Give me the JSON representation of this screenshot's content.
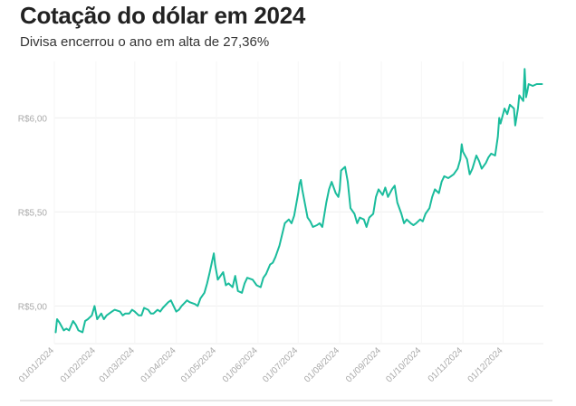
{
  "chart_data": {
    "type": "line",
    "title": "Cotação do dólar em 2024",
    "subtitle": "Divisa encerrou o ano em alta de 27,36%",
    "xlabel": "",
    "ylabel": "",
    "xlim": [
      "2024-01-01",
      "2024-12-31"
    ],
    "ylim": [
      4.8,
      6.3
    ],
    "y_ticks": [
      {
        "value": 5.0,
        "label": "R$5,00"
      },
      {
        "value": 5.5,
        "label": "R$5,50"
      },
      {
        "value": 6.0,
        "label": "R$6,00"
      }
    ],
    "x_ticks": [
      {
        "date": "2024-01-01",
        "label": "01/01/2024"
      },
      {
        "date": "2024-02-01",
        "label": "01/02/2024"
      },
      {
        "date": "2024-03-01",
        "label": "01/03/2024"
      },
      {
        "date": "2024-04-01",
        "label": "01/04/2024"
      },
      {
        "date": "2024-05-01",
        "label": "01/05/2024"
      },
      {
        "date": "2024-06-01",
        "label": "01/06/2024"
      },
      {
        "date": "2024-07-01",
        "label": "01/07/2024"
      },
      {
        "date": "2024-08-01",
        "label": "01/08/2024"
      },
      {
        "date": "2024-09-01",
        "label": "01/09/2024"
      },
      {
        "date": "2024-10-01",
        "label": "01/10/2024"
      },
      {
        "date": "2024-11-01",
        "label": "01/11/2024"
      },
      {
        "date": "2024-12-01",
        "label": "01/12/2024"
      }
    ],
    "grid": true,
    "line_color": "#1ABC9C",
    "series": [
      {
        "points": [
          [
            "2024-01-02",
            4.86
          ],
          [
            "2024-01-03",
            4.93
          ],
          [
            "2024-01-05",
            4.91
          ],
          [
            "2024-01-08",
            4.87
          ],
          [
            "2024-01-10",
            4.88
          ],
          [
            "2024-01-12",
            4.87
          ],
          [
            "2024-01-15",
            4.92
          ],
          [
            "2024-01-17",
            4.9
          ],
          [
            "2024-01-19",
            4.87
          ],
          [
            "2024-01-22",
            4.86
          ],
          [
            "2024-01-24",
            4.92
          ],
          [
            "2024-01-26",
            4.93
          ],
          [
            "2024-01-29",
            4.95
          ],
          [
            "2024-01-31",
            5.0
          ],
          [
            "2024-02-02",
            4.93
          ],
          [
            "2024-02-05",
            4.96
          ],
          [
            "2024-02-07",
            4.93
          ],
          [
            "2024-02-09",
            4.95
          ],
          [
            "2024-02-13",
            4.97
          ],
          [
            "2024-02-15",
            4.98
          ],
          [
            "2024-02-19",
            4.97
          ],
          [
            "2024-02-21",
            4.95
          ],
          [
            "2024-02-23",
            4.96
          ],
          [
            "2024-02-26",
            4.96
          ],
          [
            "2024-02-28",
            4.98
          ],
          [
            "2024-03-01",
            4.97
          ],
          [
            "2024-03-04",
            4.95
          ],
          [
            "2024-03-06",
            4.95
          ],
          [
            "2024-03-08",
            4.99
          ],
          [
            "2024-03-11",
            4.98
          ],
          [
            "2024-03-13",
            4.96
          ],
          [
            "2024-03-15",
            4.96
          ],
          [
            "2024-03-18",
            4.98
          ],
          [
            "2024-03-20",
            4.97
          ],
          [
            "2024-03-22",
            4.99
          ],
          [
            "2024-03-26",
            5.02
          ],
          [
            "2024-03-28",
            5.03
          ],
          [
            "2024-04-01",
            4.97
          ],
          [
            "2024-04-03",
            4.98
          ],
          [
            "2024-04-05",
            5.0
          ],
          [
            "2024-04-09",
            5.03
          ],
          [
            "2024-04-11",
            5.02
          ],
          [
            "2024-04-15",
            5.01
          ],
          [
            "2024-04-17",
            5.0
          ],
          [
            "2024-04-19",
            5.04
          ],
          [
            "2024-04-22",
            5.07
          ],
          [
            "2024-04-24",
            5.12
          ],
          [
            "2024-04-26",
            5.18
          ],
          [
            "2024-04-29",
            5.28
          ],
          [
            "2024-04-30",
            5.22
          ],
          [
            "2024-05-02",
            5.14
          ],
          [
            "2024-05-06",
            5.18
          ],
          [
            "2024-05-08",
            5.11
          ],
          [
            "2024-05-10",
            5.12
          ],
          [
            "2024-05-13",
            5.1
          ],
          [
            "2024-05-15",
            5.16
          ],
          [
            "2024-05-17",
            5.08
          ],
          [
            "2024-05-20",
            5.07
          ],
          [
            "2024-05-22",
            5.12
          ],
          [
            "2024-05-24",
            5.15
          ],
          [
            "2024-05-28",
            5.14
          ],
          [
            "2024-05-31",
            5.11
          ],
          [
            "2024-06-03",
            5.1
          ],
          [
            "2024-06-05",
            5.15
          ],
          [
            "2024-06-07",
            5.17
          ],
          [
            "2024-06-10",
            5.22
          ],
          [
            "2024-06-12",
            5.23
          ],
          [
            "2024-06-14",
            5.26
          ],
          [
            "2024-06-17",
            5.32
          ],
          [
            "2024-06-19",
            5.38
          ],
          [
            "2024-06-21",
            5.44
          ],
          [
            "2024-06-24",
            5.46
          ],
          [
            "2024-06-26",
            5.44
          ],
          [
            "2024-06-28",
            5.48
          ],
          [
            "2024-07-01",
            5.6
          ],
          [
            "2024-07-02",
            5.65
          ],
          [
            "2024-07-03",
            5.67
          ],
          [
            "2024-07-04",
            5.62
          ],
          [
            "2024-07-08",
            5.47
          ],
          [
            "2024-07-10",
            5.45
          ],
          [
            "2024-07-12",
            5.42
          ],
          [
            "2024-07-15",
            5.43
          ],
          [
            "2024-07-17",
            5.44
          ],
          [
            "2024-07-19",
            5.42
          ],
          [
            "2024-07-22",
            5.55
          ],
          [
            "2024-07-24",
            5.62
          ],
          [
            "2024-07-26",
            5.66
          ],
          [
            "2024-07-29",
            5.6
          ],
          [
            "2024-07-31",
            5.58
          ],
          [
            "2024-08-01",
            5.62
          ],
          [
            "2024-08-02",
            5.72
          ],
          [
            "2024-08-05",
            5.74
          ],
          [
            "2024-08-07",
            5.66
          ],
          [
            "2024-08-09",
            5.52
          ],
          [
            "2024-08-12",
            5.49
          ],
          [
            "2024-08-14",
            5.44
          ],
          [
            "2024-08-16",
            5.47
          ],
          [
            "2024-08-19",
            5.46
          ],
          [
            "2024-08-21",
            5.42
          ],
          [
            "2024-08-23",
            5.47
          ],
          [
            "2024-08-26",
            5.49
          ],
          [
            "2024-08-28",
            5.58
          ],
          [
            "2024-08-30",
            5.62
          ],
          [
            "2024-09-02",
            5.59
          ],
          [
            "2024-09-04",
            5.63
          ],
          [
            "2024-09-06",
            5.58
          ],
          [
            "2024-09-09",
            5.62
          ],
          [
            "2024-09-11",
            5.64
          ],
          [
            "2024-09-13",
            5.55
          ],
          [
            "2024-09-16",
            5.49
          ],
          [
            "2024-09-18",
            5.44
          ],
          [
            "2024-09-20",
            5.46
          ],
          [
            "2024-09-23",
            5.44
          ],
          [
            "2024-09-25",
            5.43
          ],
          [
            "2024-09-27",
            5.44
          ],
          [
            "2024-09-30",
            5.46
          ],
          [
            "2024-10-02",
            5.45
          ],
          [
            "2024-10-04",
            5.49
          ],
          [
            "2024-10-07",
            5.52
          ],
          [
            "2024-10-09",
            5.58
          ],
          [
            "2024-10-11",
            5.62
          ],
          [
            "2024-10-14",
            5.6
          ],
          [
            "2024-10-16",
            5.66
          ],
          [
            "2024-10-18",
            5.69
          ],
          [
            "2024-10-21",
            5.68
          ],
          [
            "2024-10-23",
            5.69
          ],
          [
            "2024-10-25",
            5.7
          ],
          [
            "2024-10-28",
            5.73
          ],
          [
            "2024-10-30",
            5.78
          ],
          [
            "2024-10-31",
            5.86
          ],
          [
            "2024-11-01",
            5.82
          ],
          [
            "2024-11-04",
            5.78
          ],
          [
            "2024-11-06",
            5.7
          ],
          [
            "2024-11-08",
            5.73
          ],
          [
            "2024-11-11",
            5.8
          ],
          [
            "2024-11-13",
            5.77
          ],
          [
            "2024-11-15",
            5.73
          ],
          [
            "2024-11-18",
            5.76
          ],
          [
            "2024-11-20",
            5.79
          ],
          [
            "2024-11-22",
            5.81
          ],
          [
            "2024-11-25",
            5.8
          ],
          [
            "2024-11-27",
            5.9
          ],
          [
            "2024-11-28",
            6.0
          ],
          [
            "2024-11-29",
            5.97
          ],
          [
            "2024-12-02",
            6.05
          ],
          [
            "2024-12-04",
            6.02
          ],
          [
            "2024-12-06",
            6.07
          ],
          [
            "2024-12-09",
            6.05
          ],
          [
            "2024-12-10",
            5.96
          ],
          [
            "2024-12-12",
            6.05
          ],
          [
            "2024-12-13",
            6.12
          ],
          [
            "2024-12-16",
            6.09
          ],
          [
            "2024-12-17",
            6.26
          ],
          [
            "2024-12-18",
            6.11
          ],
          [
            "2024-12-19",
            6.14
          ],
          [
            "2024-12-20",
            6.18
          ],
          [
            "2024-12-23",
            6.17
          ],
          [
            "2024-12-26",
            6.18
          ],
          [
            "2024-12-27",
            6.18
          ],
          [
            "2024-12-30",
            6.18
          ]
        ]
      }
    ]
  }
}
